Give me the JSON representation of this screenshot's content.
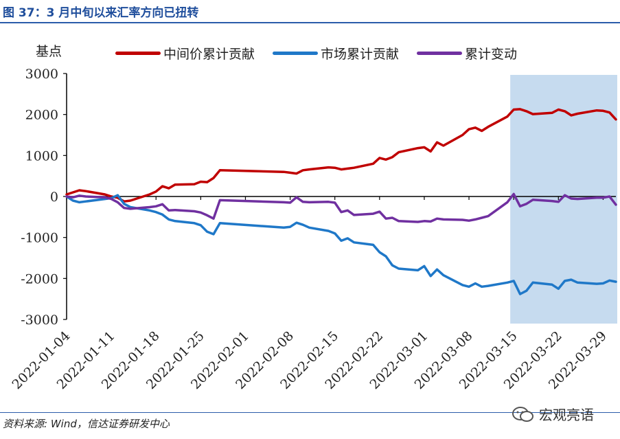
{
  "figure_title": "图 37：3 月中旬以来汇率方向已扭转",
  "source_note": "资料来源: Wind，信达证券研发中心",
  "watermark_text": "宏观亮语",
  "colors": {
    "red": "#c00000",
    "blue": "#1f78c8",
    "purple": "#7030a0",
    "highlight": "#c6dbef",
    "title": "#1f4e9c"
  },
  "chart_data": {
    "type": "line",
    "ylabel": "基点",
    "ylim": [
      -3000,
      3000
    ],
    "yticks": [
      3000,
      2000,
      1000,
      0,
      -1000,
      -2000,
      -3000
    ],
    "xticks": [
      "2022-01-04",
      "2022-01-11",
      "2022-01-18",
      "2022-01-25",
      "2022-02-01",
      "2022-02-08",
      "2022-02-15",
      "2022-02-22",
      "2022-03-01",
      "2022-03-08",
      "2022-03-15",
      "2022-03-22",
      "2022-03-29"
    ],
    "highlight_range": [
      "2022-03-15",
      "2022-03-31"
    ],
    "series": [
      {
        "name": "中间价累计贡献",
        "color": "#c00000",
        "points": [
          [
            "2022-01-04",
            50
          ],
          [
            "2022-01-05",
            100
          ],
          [
            "2022-01-06",
            150
          ],
          [
            "2022-01-07",
            130
          ],
          [
            "2022-01-10",
            50
          ],
          [
            "2022-01-11",
            0
          ],
          [
            "2022-01-12",
            -30
          ],
          [
            "2022-01-13",
            -120
          ],
          [
            "2022-01-14",
            -100
          ],
          [
            "2022-01-17",
            50
          ],
          [
            "2022-01-18",
            120
          ],
          [
            "2022-01-19",
            250
          ],
          [
            "2022-01-20",
            200
          ],
          [
            "2022-01-21",
            290
          ],
          [
            "2022-01-24",
            300
          ],
          [
            "2022-01-25",
            360
          ],
          [
            "2022-01-26",
            350
          ],
          [
            "2022-01-27",
            450
          ],
          [
            "2022-01-28",
            640
          ],
          [
            "2022-02-07",
            600
          ],
          [
            "2022-02-08",
            580
          ],
          [
            "2022-02-09",
            560
          ],
          [
            "2022-02-10",
            640
          ],
          [
            "2022-02-11",
            660
          ],
          [
            "2022-02-14",
            710
          ],
          [
            "2022-02-15",
            700
          ],
          [
            "2022-02-16",
            660
          ],
          [
            "2022-02-17",
            680
          ],
          [
            "2022-02-18",
            700
          ],
          [
            "2022-02-21",
            800
          ],
          [
            "2022-02-22",
            940
          ],
          [
            "2022-02-23",
            900
          ],
          [
            "2022-02-24",
            960
          ],
          [
            "2022-02-25",
            1080
          ],
          [
            "2022-02-28",
            1180
          ],
          [
            "2022-03-01",
            1200
          ],
          [
            "2022-03-02",
            1100
          ],
          [
            "2022-03-03",
            1320
          ],
          [
            "2022-03-04",
            1240
          ],
          [
            "2022-03-07",
            1500
          ],
          [
            "2022-03-08",
            1640
          ],
          [
            "2022-03-09",
            1680
          ],
          [
            "2022-03-10",
            1600
          ],
          [
            "2022-03-11",
            1700
          ],
          [
            "2022-03-14",
            1950
          ],
          [
            "2022-03-15",
            2120
          ],
          [
            "2022-03-16",
            2130
          ],
          [
            "2022-03-17",
            2080
          ],
          [
            "2022-03-18",
            2010
          ],
          [
            "2022-03-21",
            2040
          ],
          [
            "2022-03-22",
            2120
          ],
          [
            "2022-03-23",
            2080
          ],
          [
            "2022-03-24",
            1980
          ],
          [
            "2022-03-25",
            2020
          ],
          [
            "2022-03-28",
            2100
          ],
          [
            "2022-03-29",
            2090
          ],
          [
            "2022-03-30",
            2050
          ],
          [
            "2022-03-31",
            1880
          ]
        ]
      },
      {
        "name": "市场累计贡献",
        "color": "#1f78c8",
        "points": [
          [
            "2022-01-04",
            0
          ],
          [
            "2022-01-05",
            -100
          ],
          [
            "2022-01-06",
            -140
          ],
          [
            "2022-01-07",
            -120
          ],
          [
            "2022-01-10",
            -60
          ],
          [
            "2022-01-11",
            -40
          ],
          [
            "2022-01-12",
            30
          ],
          [
            "2022-01-13",
            -180
          ],
          [
            "2022-01-14",
            -260
          ],
          [
            "2022-01-17",
            -340
          ],
          [
            "2022-01-18",
            -380
          ],
          [
            "2022-01-19",
            -440
          ],
          [
            "2022-01-20",
            -560
          ],
          [
            "2022-01-21",
            -600
          ],
          [
            "2022-01-24",
            -650
          ],
          [
            "2022-01-25",
            -700
          ],
          [
            "2022-01-26",
            -860
          ],
          [
            "2022-01-27",
            -920
          ],
          [
            "2022-01-28",
            -650
          ],
          [
            "2022-02-07",
            -760
          ],
          [
            "2022-02-08",
            -740
          ],
          [
            "2022-02-09",
            -640
          ],
          [
            "2022-02-10",
            -690
          ],
          [
            "2022-02-11",
            -760
          ],
          [
            "2022-02-14",
            -840
          ],
          [
            "2022-02-15",
            -900
          ],
          [
            "2022-02-16",
            -1080
          ],
          [
            "2022-02-17",
            -1020
          ],
          [
            "2022-02-18",
            -1120
          ],
          [
            "2022-02-21",
            -1180
          ],
          [
            "2022-02-22",
            -1360
          ],
          [
            "2022-02-23",
            -1460
          ],
          [
            "2022-02-24",
            -1680
          ],
          [
            "2022-02-25",
            -1760
          ],
          [
            "2022-02-28",
            -1800
          ],
          [
            "2022-03-01",
            -1700
          ],
          [
            "2022-03-02",
            -1940
          ],
          [
            "2022-03-03",
            -1780
          ],
          [
            "2022-03-04",
            -1920
          ],
          [
            "2022-03-07",
            -2160
          ],
          [
            "2022-03-08",
            -2200
          ],
          [
            "2022-03-09",
            -2120
          ],
          [
            "2022-03-10",
            -2200
          ],
          [
            "2022-03-11",
            -2180
          ],
          [
            "2022-03-14",
            -2100
          ],
          [
            "2022-03-15",
            -2060
          ],
          [
            "2022-03-16",
            -2380
          ],
          [
            "2022-03-17",
            -2300
          ],
          [
            "2022-03-18",
            -2100
          ],
          [
            "2022-03-21",
            -2150
          ],
          [
            "2022-03-22",
            -2250
          ],
          [
            "2022-03-23",
            -2060
          ],
          [
            "2022-03-24",
            -2030
          ],
          [
            "2022-03-25",
            -2100
          ],
          [
            "2022-03-28",
            -2130
          ],
          [
            "2022-03-29",
            -2120
          ],
          [
            "2022-03-30",
            -2050
          ],
          [
            "2022-03-31",
            -2080
          ]
        ]
      },
      {
        "name": "累计变动",
        "color": "#7030a0",
        "points": [
          [
            "2022-01-04",
            0
          ],
          [
            "2022-01-05",
            -20
          ],
          [
            "2022-01-06",
            20
          ],
          [
            "2022-01-07",
            0
          ],
          [
            "2022-01-10",
            -20
          ],
          [
            "2022-01-11",
            -60
          ],
          [
            "2022-01-12",
            -140
          ],
          [
            "2022-01-13",
            -280
          ],
          [
            "2022-01-14",
            -300
          ],
          [
            "2022-01-17",
            -260
          ],
          [
            "2022-01-18",
            -240
          ],
          [
            "2022-01-19",
            -190
          ],
          [
            "2022-01-20",
            -340
          ],
          [
            "2022-01-21",
            -330
          ],
          [
            "2022-01-24",
            -360
          ],
          [
            "2022-01-25",
            -390
          ],
          [
            "2022-01-26",
            -460
          ],
          [
            "2022-01-27",
            -540
          ],
          [
            "2022-01-28",
            -90
          ],
          [
            "2022-02-07",
            -140
          ],
          [
            "2022-02-08",
            -150
          ],
          [
            "2022-02-09",
            -20
          ],
          [
            "2022-02-10",
            -130
          ],
          [
            "2022-02-11",
            -140
          ],
          [
            "2022-02-14",
            -130
          ],
          [
            "2022-02-15",
            -150
          ],
          [
            "2022-02-16",
            -380
          ],
          [
            "2022-02-17",
            -340
          ],
          [
            "2022-02-18",
            -450
          ],
          [
            "2022-02-21",
            -420
          ],
          [
            "2022-02-22",
            -370
          ],
          [
            "2022-02-23",
            -540
          ],
          [
            "2022-02-24",
            -520
          ],
          [
            "2022-02-25",
            -600
          ],
          [
            "2022-02-28",
            -620
          ],
          [
            "2022-03-01",
            -600
          ],
          [
            "2022-03-02",
            -610
          ],
          [
            "2022-03-03",
            -540
          ],
          [
            "2022-03-04",
            -560
          ],
          [
            "2022-03-07",
            -570
          ],
          [
            "2022-03-08",
            -590
          ],
          [
            "2022-03-09",
            -560
          ],
          [
            "2022-03-10",
            -520
          ],
          [
            "2022-03-11",
            -480
          ],
          [
            "2022-03-14",
            -140
          ],
          [
            "2022-03-15",
            60
          ],
          [
            "2022-03-16",
            -240
          ],
          [
            "2022-03-17",
            -180
          ],
          [
            "2022-03-18",
            -80
          ],
          [
            "2022-03-21",
            -110
          ],
          [
            "2022-03-22",
            -130
          ],
          [
            "2022-03-23",
            30
          ],
          [
            "2022-03-24",
            -50
          ],
          [
            "2022-03-25",
            -60
          ],
          [
            "2022-03-28",
            -30
          ],
          [
            "2022-03-29",
            -30
          ],
          [
            "2022-03-30",
            0
          ],
          [
            "2022-03-31",
            -200
          ]
        ]
      }
    ]
  }
}
